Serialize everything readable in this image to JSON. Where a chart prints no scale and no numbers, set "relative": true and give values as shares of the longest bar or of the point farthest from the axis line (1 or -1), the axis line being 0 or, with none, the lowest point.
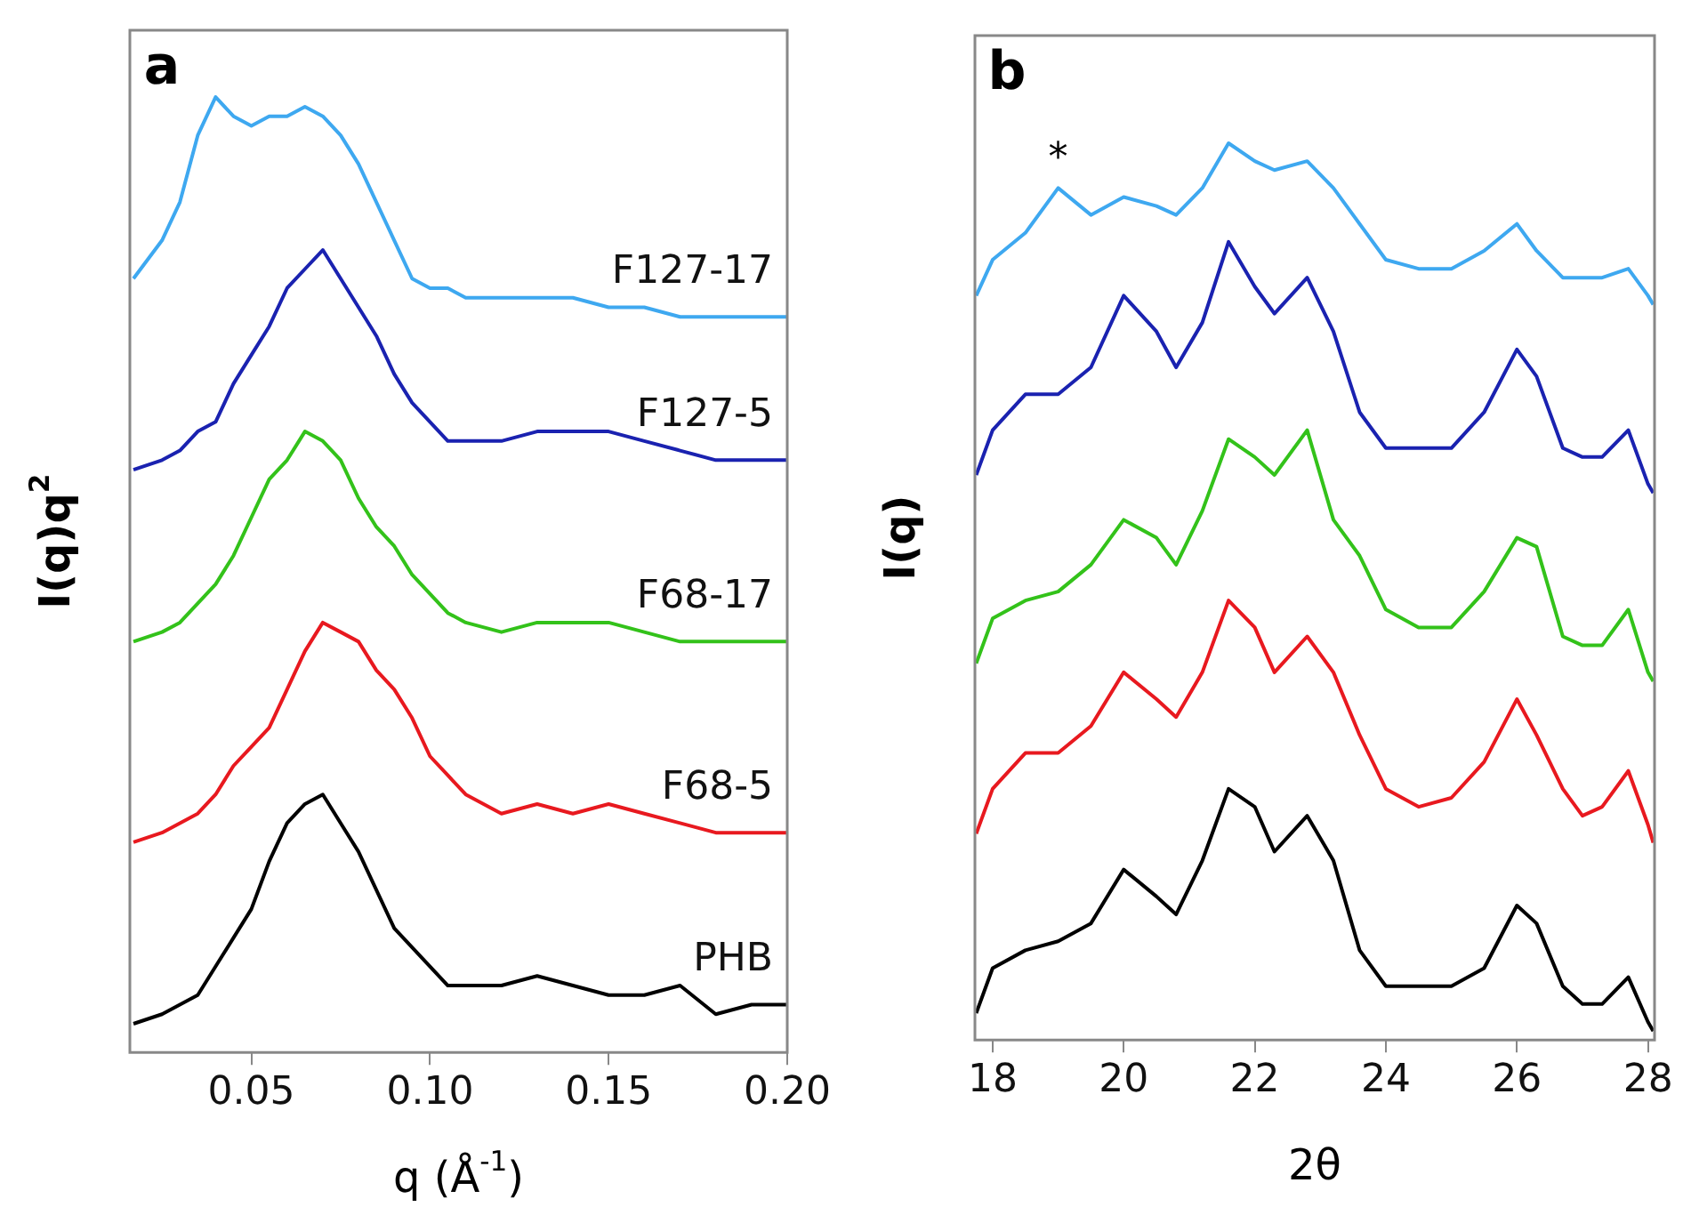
{
  "chart_data": [
    {
      "type": "line",
      "title": "a",
      "xlabel": "q (Å$^{-1}$)",
      "ylabel": "I(q)q$^{2}$",
      "relative": true,
      "x": [
        0.017,
        0.025,
        0.03,
        0.035,
        0.04,
        0.045,
        0.05,
        0.055,
        0.06,
        0.065,
        0.07,
        0.075,
        0.08,
        0.085,
        0.09,
        0.095,
        0.1,
        0.105,
        0.11,
        0.12,
        0.13,
        0.14,
        0.15,
        0.16,
        0.17,
        0.18,
        0.19,
        0.2
      ],
      "xlim": [
        0.016,
        0.2
      ],
      "xticks": [
        0.05,
        {
          "value": 0.1,
          "label": "0.10"
        },
        0.15,
        {
          "value": 0.2,
          "label": "0.20"
        }
      ],
      "series": [
        {
          "name": "F127-17",
          "color": "#3ea8f0",
          "values": [
            0.81,
            0.85,
            0.89,
            0.96,
            1,
            0.98,
            0.97,
            0.98,
            0.98,
            0.99,
            0.98,
            0.96,
            0.93,
            0.89,
            0.85,
            0.81,
            0.8,
            0.8,
            0.79,
            0.79,
            0.79,
            0.79,
            0.78,
            0.78,
            0.77,
            0.77,
            0.77,
            0.77
          ]
        },
        {
          "name": "F127-5",
          "color": "#1a22b0",
          "values": [
            0.61,
            0.62,
            0.63,
            0.65,
            0.66,
            0.7,
            0.73,
            0.76,
            0.8,
            0.82,
            0.84,
            0.81,
            0.78,
            0.75,
            0.71,
            0.68,
            0.66,
            0.64,
            0.64,
            0.64,
            0.65,
            0.65,
            0.65,
            0.64,
            0.63,
            0.62,
            0.62,
            0.62
          ]
        },
        {
          "name": "F68-17",
          "color": "#33c21a",
          "values": [
            0.43,
            0.44,
            0.45,
            0.47,
            0.49,
            0.52,
            0.56,
            0.6,
            0.62,
            0.65,
            0.64,
            0.62,
            0.58,
            0.55,
            0.53,
            0.5,
            0.48,
            0.46,
            0.45,
            0.44,
            0.45,
            0.45,
            0.45,
            0.44,
            0.43,
            0.43,
            0.43,
            0.43
          ]
        },
        {
          "name": "F68-5",
          "color": "#e8191f",
          "values": [
            0.22,
            0.23,
            0.24,
            0.25,
            0.27,
            0.3,
            0.32,
            0.34,
            0.38,
            0.42,
            0.45,
            0.44,
            0.43,
            0.4,
            0.38,
            0.35,
            0.31,
            0.29,
            0.27,
            0.25,
            0.26,
            0.25,
            0.26,
            0.25,
            0.24,
            0.23,
            0.23,
            0.23
          ]
        },
        {
          "name": "PHB",
          "color": "#000000",
          "values": [
            0.03,
            0.04,
            0.05,
            0.06,
            0.09,
            0.12,
            0.15,
            0.2,
            0.24,
            0.26,
            0.27,
            0.24,
            0.21,
            0.17,
            0.13,
            0.11,
            0.09,
            0.07,
            0.07,
            0.07,
            0.08,
            0.07,
            0.06,
            0.06,
            0.07,
            0.04,
            0.05,
            0.05
          ]
        }
      ]
    },
    {
      "type": "line",
      "title": "b",
      "xlabel": "2θ",
      "ylabel": "I(q)",
      "relative": true,
      "x": [
        17.75,
        18,
        18.5,
        19,
        19.5,
        20,
        20.5,
        20.8,
        21.2,
        21.6,
        22,
        22.3,
        22.8,
        23.2,
        23.6,
        24,
        24.5,
        25,
        25.5,
        26,
        26.3,
        26.7,
        27,
        27.3,
        27.7,
        28,
        28.08
      ],
      "xlim": [
        17.73,
        28.1
      ],
      "xticks": [
        18,
        20,
        22,
        24,
        26,
        28
      ],
      "annotations": [
        {
          "text": "*",
          "x": 19,
          "y": 0.95
        }
      ],
      "series": [
        {
          "color": "#3ea8f0",
          "values": [
            0.83,
            0.87,
            0.9,
            0.95,
            0.92,
            0.94,
            0.93,
            0.92,
            0.95,
            1,
            0.98,
            0.97,
            0.98,
            0.95,
            0.91,
            0.87,
            0.86,
            0.86,
            0.88,
            0.91,
            0.88,
            0.85,
            0.85,
            0.85,
            0.86,
            0.83,
            0.82
          ]
        },
        {
          "color": "#1a22b0",
          "values": [
            0.63,
            0.68,
            0.72,
            0.72,
            0.75,
            0.83,
            0.79,
            0.75,
            0.8,
            0.89,
            0.84,
            0.81,
            0.85,
            0.79,
            0.7,
            0.66,
            0.66,
            0.66,
            0.7,
            0.77,
            0.74,
            0.66,
            0.65,
            0.65,
            0.68,
            0.62,
            0.61
          ]
        },
        {
          "color": "#33c21a",
          "values": [
            0.42,
            0.47,
            0.49,
            0.5,
            0.53,
            0.58,
            0.56,
            0.53,
            0.59,
            0.67,
            0.65,
            0.63,
            0.68,
            0.58,
            0.54,
            0.48,
            0.46,
            0.46,
            0.5,
            0.56,
            0.55,
            0.45,
            0.44,
            0.44,
            0.48,
            0.41,
            0.4
          ]
        },
        {
          "color": "#e8191f",
          "values": [
            0.23,
            0.28,
            0.32,
            0.32,
            0.35,
            0.41,
            0.38,
            0.36,
            0.41,
            0.49,
            0.46,
            0.41,
            0.45,
            0.41,
            0.34,
            0.28,
            0.26,
            0.27,
            0.31,
            0.38,
            0.34,
            0.28,
            0.25,
            0.26,
            0.3,
            0.24,
            0.22
          ]
        },
        {
          "color": "#000000",
          "values": [
            0.03,
            0.08,
            0.1,
            0.11,
            0.13,
            0.19,
            0.16,
            0.14,
            0.2,
            0.28,
            0.26,
            0.21,
            0.25,
            0.2,
            0.1,
            0.06,
            0.06,
            0.06,
            0.08,
            0.15,
            0.13,
            0.06,
            0.04,
            0.04,
            0.07,
            0.02,
            0.01
          ]
        }
      ]
    }
  ]
}
